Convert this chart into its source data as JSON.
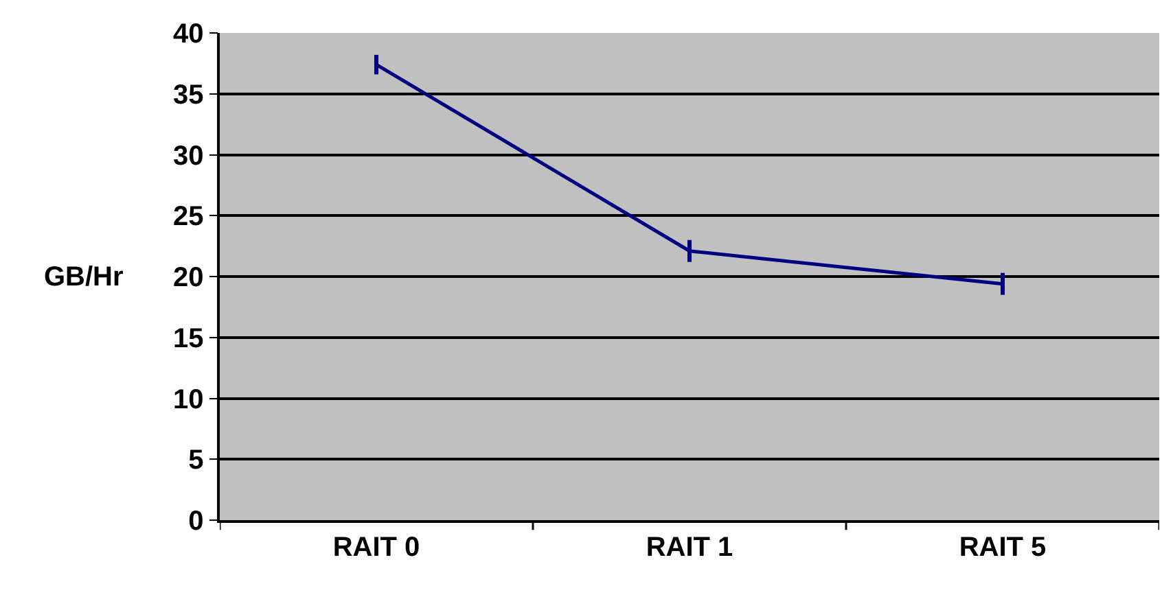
{
  "chart_data": {
    "type": "line",
    "ylabel": "GB/Hr",
    "categories": [
      "RAIT 0",
      "RAIT 1",
      "RAIT 5"
    ],
    "series": [
      {
        "color": "#000080",
        "values": [
          37.4,
          22.1,
          19.4
        ],
        "errors": [
          0.8,
          0.9,
          0.9
        ]
      }
    ],
    "ylim": [
      0,
      40
    ],
    "yticks": [
      0,
      5,
      10,
      15,
      20,
      25,
      30,
      35,
      40
    ],
    "grid": "y",
    "legend": false,
    "marker": "none",
    "line_style": "solid"
  }
}
